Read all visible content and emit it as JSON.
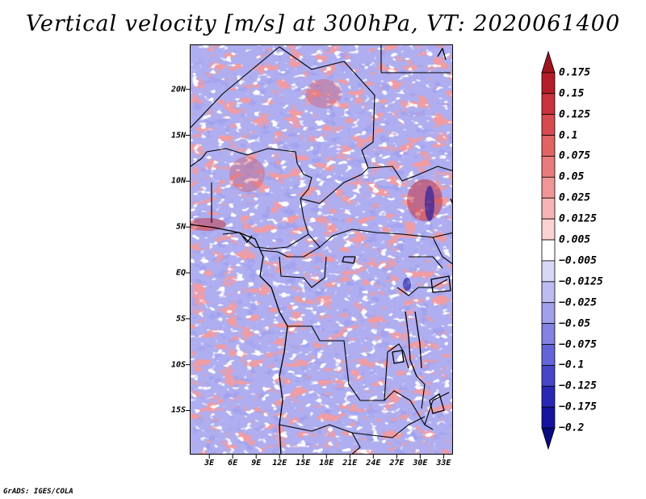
{
  "title": "Vertical velocity [m/s] at 300hPa, VT: 2020061400",
  "footer": "GrADS: IGES/COLA",
  "lat_labels": [
    "20N",
    "15N",
    "10N",
    "5N",
    "EQ",
    "5S",
    "10S",
    "15S"
  ],
  "lat_values": [
    20,
    15,
    10,
    5,
    0,
    -5,
    -10,
    -15
  ],
  "lon_labels": [
    "3E",
    "6E",
    "9E",
    "12E",
    "15E",
    "18E",
    "21E",
    "24E",
    "27E",
    "30E",
    "33E"
  ],
  "lon_values": [
    3,
    6,
    9,
    12,
    15,
    18,
    21,
    24,
    27,
    30,
    33
  ],
  "map_extent": {
    "lon_min": 0.5,
    "lon_max": 34.2,
    "lat_min": -19.8,
    "lat_max": 24.9
  },
  "colorbar": {
    "labels": [
      "0.175",
      "0.15",
      "0.125",
      "0.1",
      "0.075",
      "0.05",
      "0.025",
      "0.0125",
      "0.005",
      "−0.005",
      "−0.0125",
      "−0.025",
      "−0.05",
      "−0.075",
      "−0.1",
      "−0.125",
      "−0.175",
      "−0.2"
    ],
    "colors": [
      "#a0141e",
      "#b41e28",
      "#c8323c",
      "#d74b50",
      "#e06464",
      "#e87c7c",
      "#f09696",
      "#f6b4b4",
      "#fbd2d2",
      "#ffffff",
      "#d8d8f6",
      "#bcbcf0",
      "#a0a0ea",
      "#8282e2",
      "#6464d8",
      "#4646c8",
      "#2828b4",
      "#1414a0",
      "#0a0a82"
    ]
  }
}
